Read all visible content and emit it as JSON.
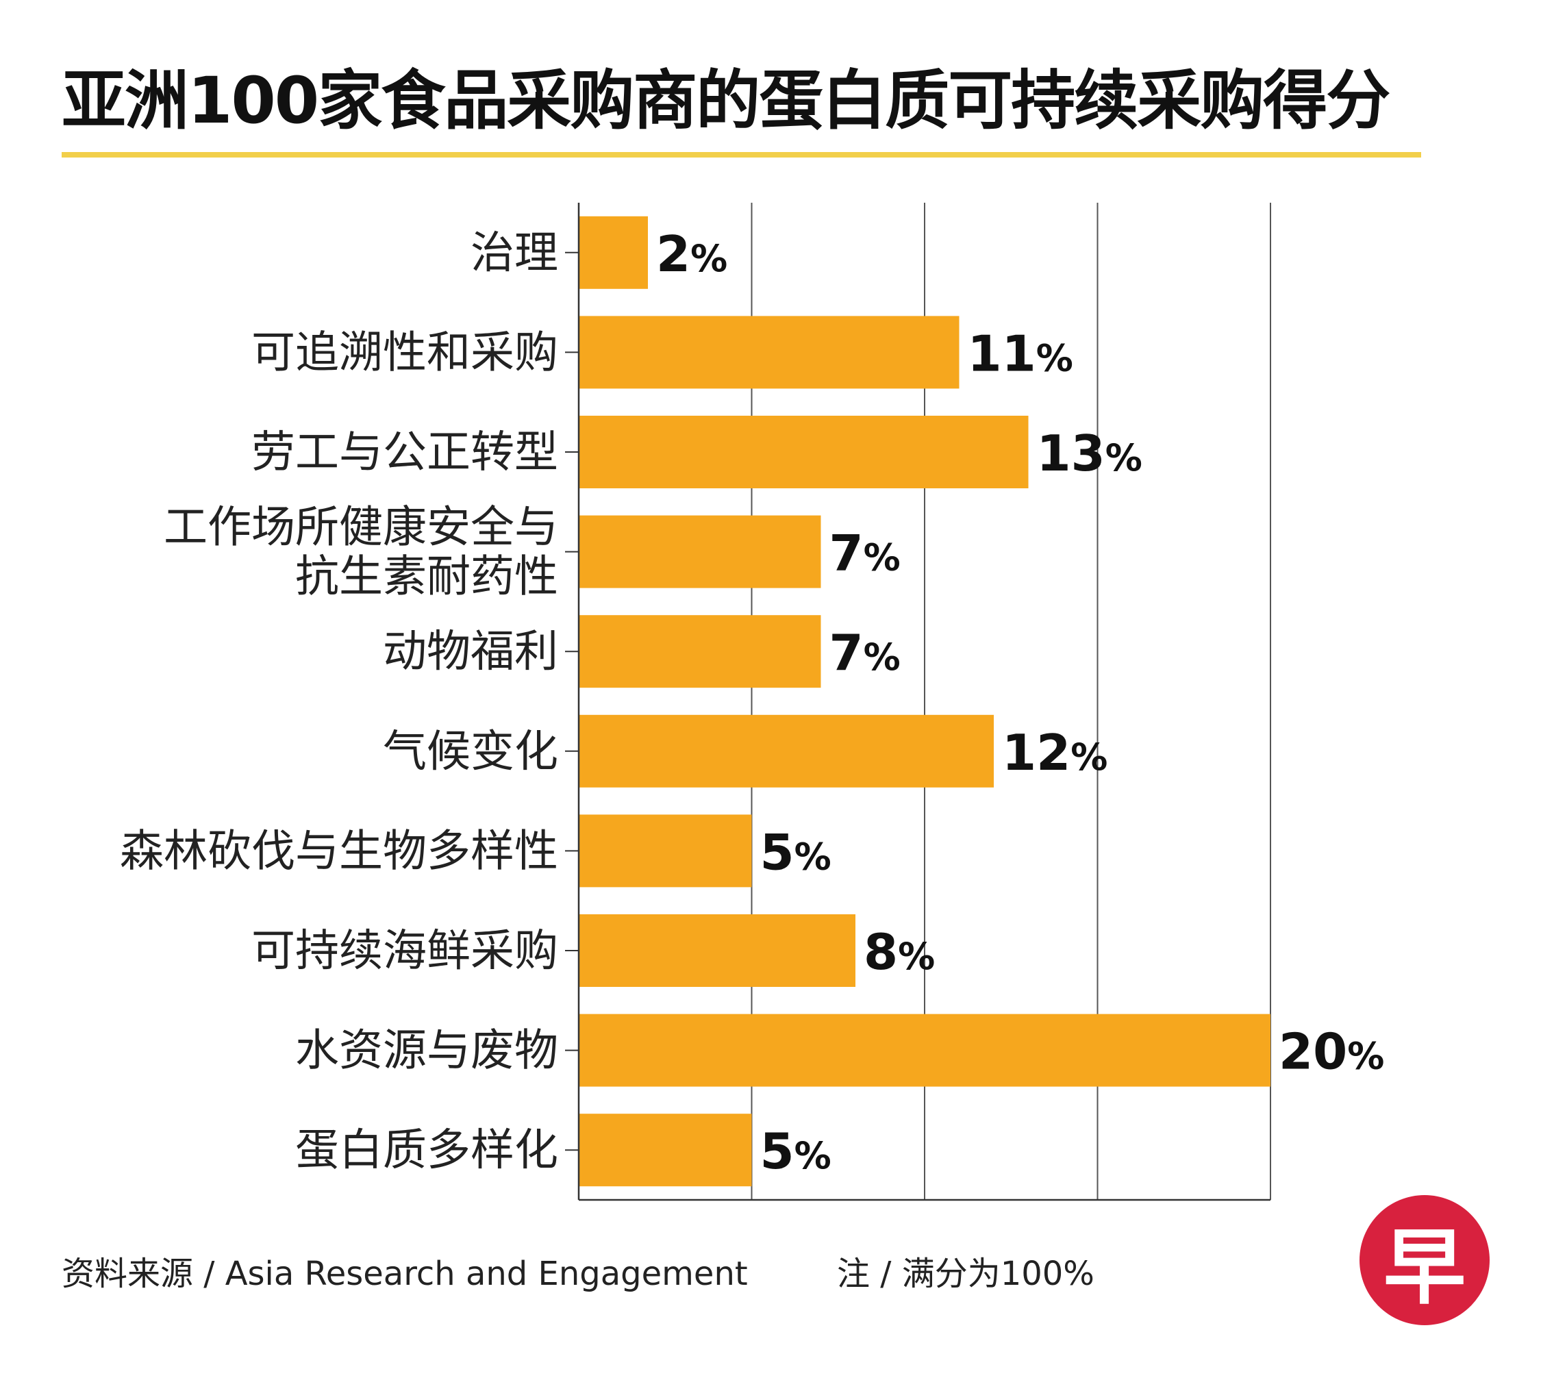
{
  "colors": {
    "bar": "#F6A71E",
    "accent_rule": "#F2CF4A",
    "axis": "#333333",
    "grid": "#555555",
    "logo": "#D8213E"
  },
  "chart_data": {
    "type": "bar",
    "orientation": "horizontal",
    "title": "亚洲100家食品采购商的蛋白质可持续采购得分",
    "categories": [
      [
        "治理"
      ],
      [
        "可追溯性和采购"
      ],
      [
        "劳工与公正转型"
      ],
      [
        "工作场所健康安全与",
        "抗生素耐药性"
      ],
      [
        "动物福利"
      ],
      [
        "气候变化"
      ],
      [
        "森林砍伐与生物多样性"
      ],
      [
        "可持续海鲜采购"
      ],
      [
        "水资源与废物"
      ],
      [
        "蛋白质多样化"
      ]
    ],
    "values": [
      2,
      11,
      13,
      7,
      7,
      12,
      5,
      8,
      20,
      5
    ],
    "value_unit": "%",
    "xlim": [
      0,
      20
    ],
    "grid": true,
    "legend": "none"
  },
  "footer": {
    "source": "资料来源 / Asia Research and Engagement",
    "note": "注 / 满分为100%"
  },
  "logo": {
    "text": "早",
    "icon": "zaobao-logo"
  }
}
